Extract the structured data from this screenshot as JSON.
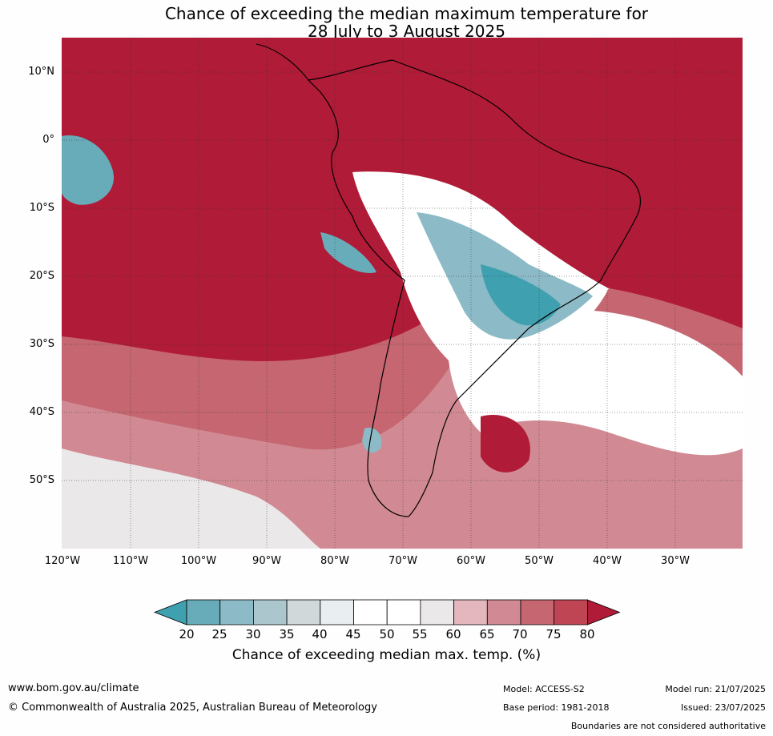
{
  "title": {
    "line1": "Chance of exceeding the median maximum temperature for",
    "line2": "28 July to 3 August 2025"
  },
  "lat_labels": [
    "10°N",
    "0°",
    "10°S",
    "20°S",
    "30°S",
    "40°S",
    "50°S"
  ],
  "lon_labels": [
    "120°W",
    "110°W",
    "100°W",
    "90°W",
    "80°W",
    "70°W",
    "60°W",
    "50°W",
    "40°W",
    "30°W"
  ],
  "colors": {
    "very_high": "#b01b37",
    "ocean_fill": "#b01b37",
    "land_outline": "#000000",
    "border": "#7a7a7a"
  },
  "colorbar": {
    "ticks": [
      "20",
      "25",
      "30",
      "35",
      "40",
      "45",
      "50",
      "55",
      "60",
      "65",
      "70",
      "75",
      "80"
    ],
    "colors": [
      "#3fa0b0",
      "#68acb9",
      "#8cbac6",
      "#abc6cd",
      "#d0d8da",
      "#e9eff0",
      "#ffffff",
      "#ffffff",
      "#ebe8ea",
      "#e3b7bd",
      "#d18a93",
      "#c56670",
      "#bf4454",
      "#b01b37"
    ],
    "label": "Chance of exceeding median max. temp. (%)"
  },
  "footer": {
    "website": "www.bom.gov.au/climate",
    "copyright": "© Commonwealth of Australia 2025, Australian Bureau of Meteorology",
    "model": "Model: ACCESS-S2",
    "base_period": "Base period: 1981-2018",
    "model_run": "Model run: 21/07/2025",
    "issued": "Issued: 23/07/2025",
    "disclaimer": "Boundaries are not considered authoritative"
  }
}
